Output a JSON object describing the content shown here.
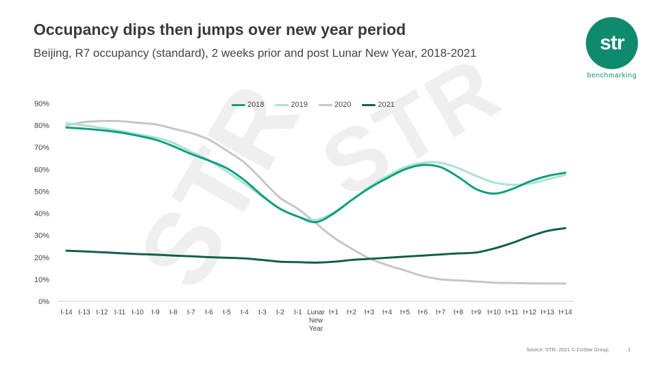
{
  "header": {
    "title": "Occupancy dips then jumps over new year period",
    "subtitle": "Beijing, R7 occupancy (standard), 2 weeks prior and post Lunar New Year, 2018-2021"
  },
  "logo": {
    "mark": "str",
    "tagline": "benchmarking",
    "color": "#0f8a6e"
  },
  "watermark": {
    "text": "STR"
  },
  "footer": {
    "source": "Source: STR. 2021 © CoStar Group.",
    "page": "1"
  },
  "chart_data": {
    "type": "line",
    "title": "",
    "xlabel": "",
    "ylabel": "",
    "ylim": [
      0,
      90
    ],
    "yticks": [
      0,
      10,
      20,
      30,
      40,
      50,
      60,
      70,
      80,
      90
    ],
    "ytick_labels": [
      "0%",
      "10%",
      "20%",
      "30%",
      "40%",
      "50%",
      "60%",
      "70%",
      "80%",
      "90%"
    ],
    "categories": [
      "t-14",
      "t-13",
      "t-12",
      "t-11",
      "t-10",
      "t-9",
      "t-8",
      "t-7",
      "t-6",
      "t-5",
      "t-4",
      "t-3",
      "t-2",
      "t-1",
      "Lunar New Year",
      "t+1",
      "t+2",
      "t+3",
      "t+4",
      "t+5",
      "t+6",
      "t+7",
      "t+8",
      "t+9",
      "t+10",
      "t+11",
      "t+12",
      "t+13",
      "t+14"
    ],
    "category_labels": [
      "t-14",
      "t-13",
      "t-12",
      "t-11",
      "t-10",
      "t-9",
      "t-8",
      "t-7",
      "t-6",
      "t-5",
      "t-4",
      "t-3",
      "t-2",
      "t-1",
      "Lunar\nNew\nYear",
      "t+1",
      "t+2",
      "t+3",
      "t+4",
      "t+5",
      "t+6",
      "t+7",
      "t+8",
      "t+9",
      "t+10",
      "t+11",
      "t+12",
      "t+13",
      "t+14"
    ],
    "legend_position": "top",
    "grid": false,
    "series": [
      {
        "name": "2018",
        "color": "#0f9e7e",
        "values": [
          79,
          78.5,
          77.8,
          76.8,
          75.3,
          73.5,
          70.5,
          67,
          64,
          60.5,
          55,
          48,
          42,
          38.5,
          36,
          40,
          46,
          51.5,
          56,
          60,
          62,
          61,
          56.5,
          51,
          49,
          51,
          54.5,
          57,
          58.5
        ]
      },
      {
        "name": "2019",
        "color": "#a9e3d2",
        "values": [
          81,
          80,
          78.8,
          77.5,
          76,
          74.5,
          72,
          68,
          64,
          59,
          53.5,
          47.5,
          42,
          38.5,
          37,
          40.5,
          46,
          52,
          57,
          61,
          63,
          63,
          60.5,
          57,
          54,
          53,
          53.5,
          55.5,
          57.5
        ]
      },
      {
        "name": "2020",
        "color": "#c6c6c6",
        "values": [
          80,
          81.5,
          82,
          82,
          81.2,
          80.5,
          78.5,
          76.5,
          73.5,
          68.5,
          63,
          55,
          47,
          42,
          35.5,
          29,
          24,
          19.5,
          16.5,
          14,
          11.5,
          10,
          9.5,
          9,
          8.5,
          8.3,
          8.2,
          8.1,
          8.1
        ]
      },
      {
        "name": "2021",
        "color": "#135e4e",
        "values": [
          23,
          22.7,
          22.3,
          21.9,
          21.5,
          21.2,
          20.8,
          20.5,
          20.1,
          19.8,
          19.5,
          18.8,
          18,
          17.8,
          17.6,
          18,
          18.8,
          19.3,
          19.8,
          20.3,
          20.8,
          21.3,
          21.8,
          22.2,
          24,
          26.5,
          29.5,
          32,
          33.3
        ]
      }
    ]
  }
}
